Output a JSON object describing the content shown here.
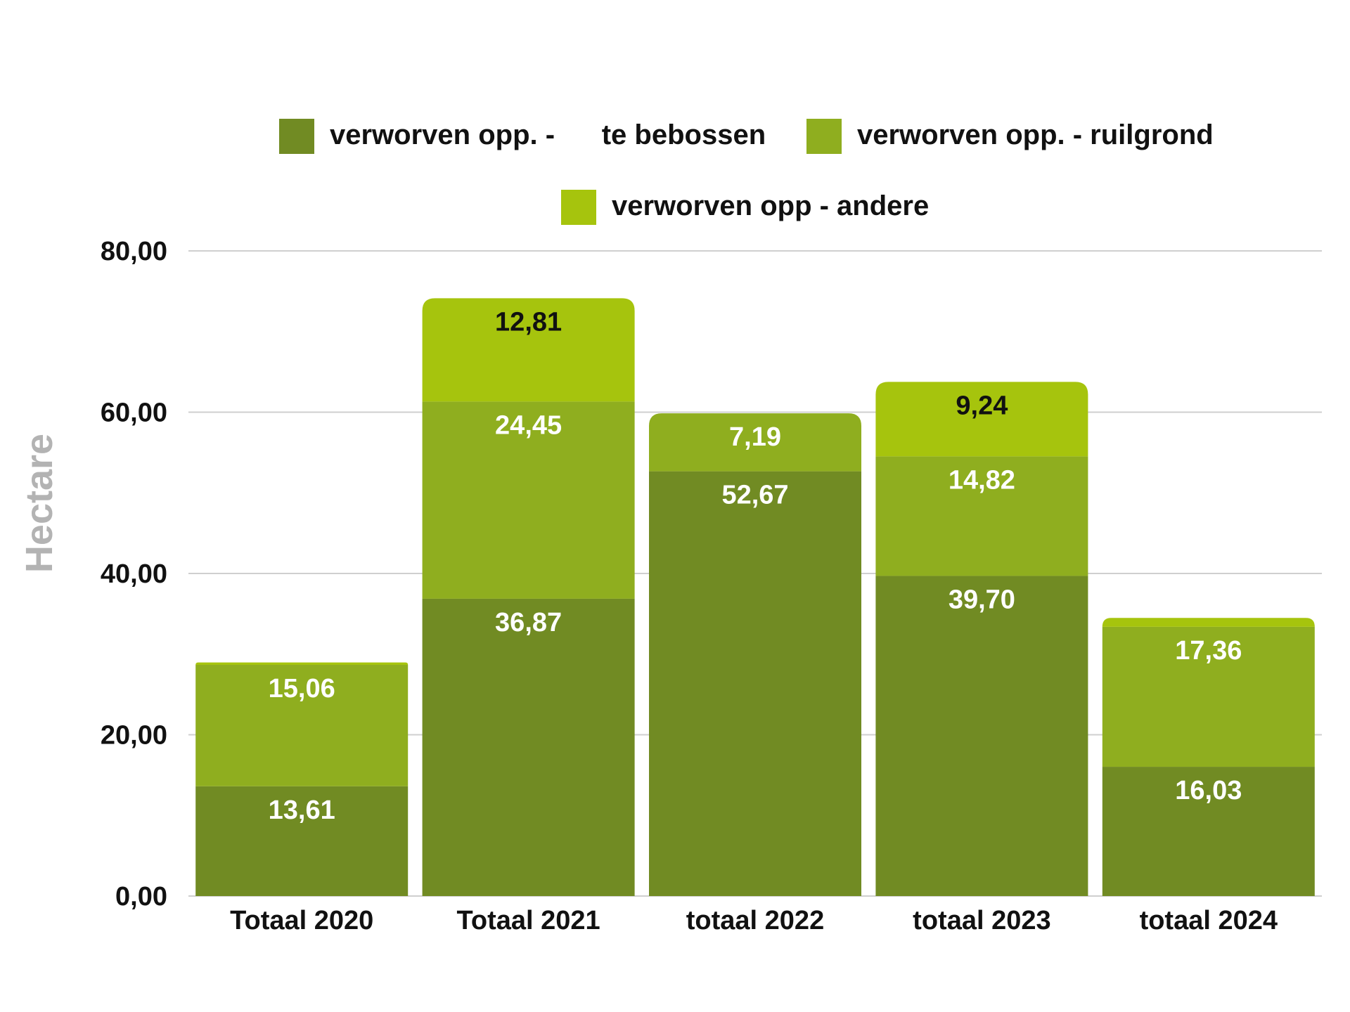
{
  "chart_data": {
    "type": "bar",
    "stacked": true,
    "title": "",
    "xlabel": "",
    "ylabel": "Hectare",
    "ylim": [
      0,
      80
    ],
    "yticks": [
      "0,00",
      "20,00",
      "40,00",
      "60,00",
      "80,00"
    ],
    "ytick_values": [
      0,
      20,
      40,
      60,
      80
    ],
    "grid": true,
    "legend_position": "top",
    "categories": [
      "Totaal 2020",
      "Totaal 2021",
      "totaal 2022",
      "totaal 2023",
      "totaal 2024"
    ],
    "series": [
      {
        "name": "verworven opp. -      te bebossen",
        "color": "#718b23",
        "label_color": "#ffffff",
        "values": [
          13.61,
          36.87,
          52.67,
          39.7,
          16.03
        ],
        "labels": [
          "13,61",
          "36,87",
          "52,67",
          "39,70",
          "16,03"
        ]
      },
      {
        "name": "verworven opp. - ruilgrond",
        "color": "#8fae1f",
        "label_color": "#ffffff",
        "values": [
          15.06,
          24.45,
          7.19,
          14.82,
          17.36
        ],
        "labels": [
          "15,06",
          "24,45",
          "7,19",
          "14,82",
          "17,36"
        ]
      },
      {
        "name": "verworven opp - andere",
        "color": "#a6c40d",
        "label_color": "#111111",
        "values": [
          0.3,
          12.81,
          0,
          9.24,
          1.1
        ],
        "labels": [
          "",
          "12,81",
          "",
          "9,24",
          ""
        ]
      }
    ]
  }
}
